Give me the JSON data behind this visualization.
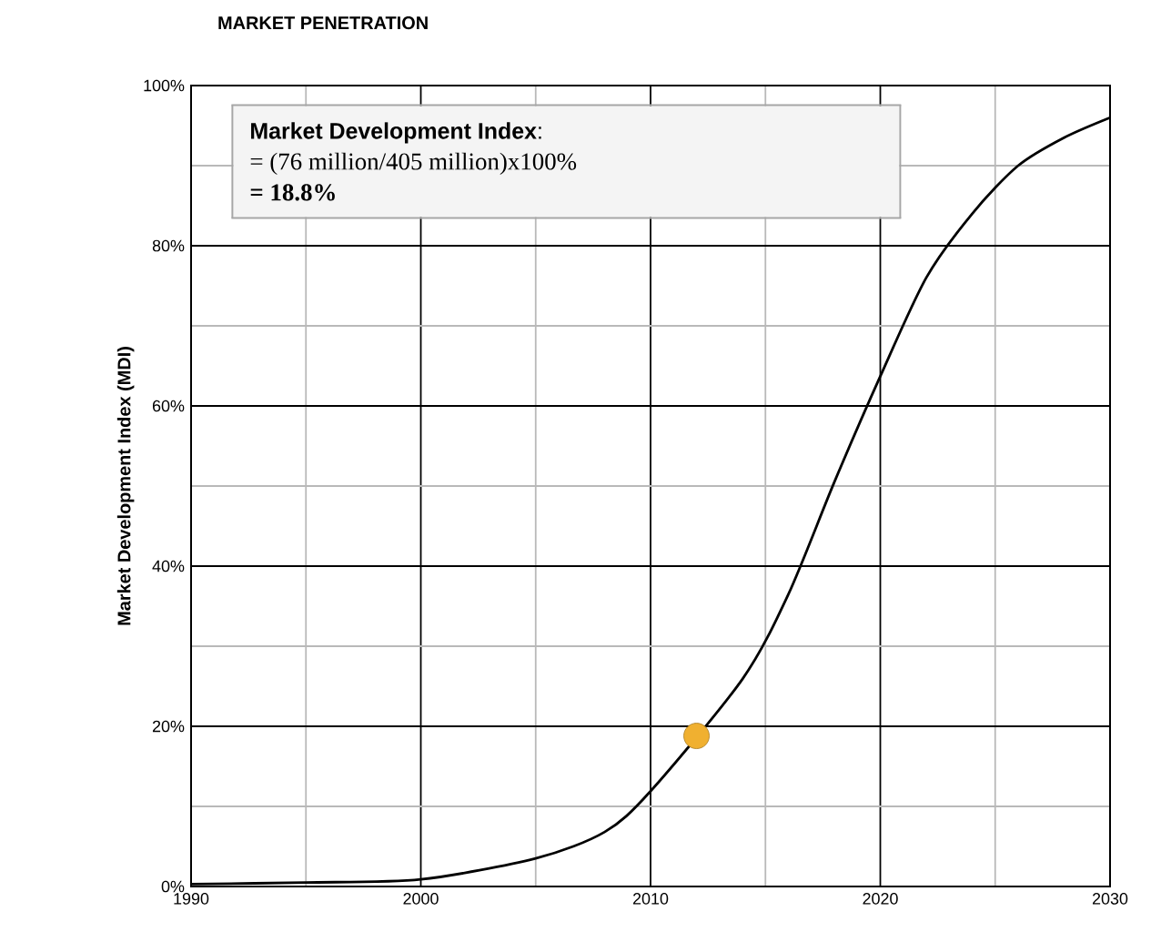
{
  "chart_data": {
    "type": "line",
    "title": "MARKET PENETRATION",
    "ylabel": "Market Development Index (MDI)",
    "annotations": [
      "**Market Development Index**:",
      "= (76 million/405 million)x100%",
      "= 18.8%"
    ],
    "xlim": [
      1990,
      2030
    ],
    "xticks": [
      1990,
      2000,
      2010,
      2020,
      2030
    ],
    "ylim": [
      0,
      100
    ],
    "yticks": [
      {
        "value": 0,
        "label": "0%"
      },
      {
        "value": 20,
        "label": "20%"
      },
      {
        "value": 40,
        "label": "40%"
      },
      {
        "value": 60,
        "label": "60%"
      },
      {
        "value": 80,
        "label": "80%"
      },
      {
        "value": 100,
        "label": "100%"
      }
    ],
    "grid": true,
    "series": [
      {
        "color": "#000000",
        "x": [
          1990,
          1995,
          2000,
          2005,
          2008,
          2010,
          2014,
          2016,
          2018,
          2020,
          2022,
          2024,
          2026,
          2028,
          2030
        ],
        "values": [
          0.3,
          0.5,
          0.9,
          3.5,
          6.8,
          11.9,
          25.9,
          36.5,
          50.5,
          63.7,
          76,
          84,
          90,
          93.5,
          96
        ]
      },
      {
        "type": "scatter",
        "color": "#f0b030",
        "x": [
          2012
        ],
        "values": [
          18.8
        ]
      }
    ]
  }
}
